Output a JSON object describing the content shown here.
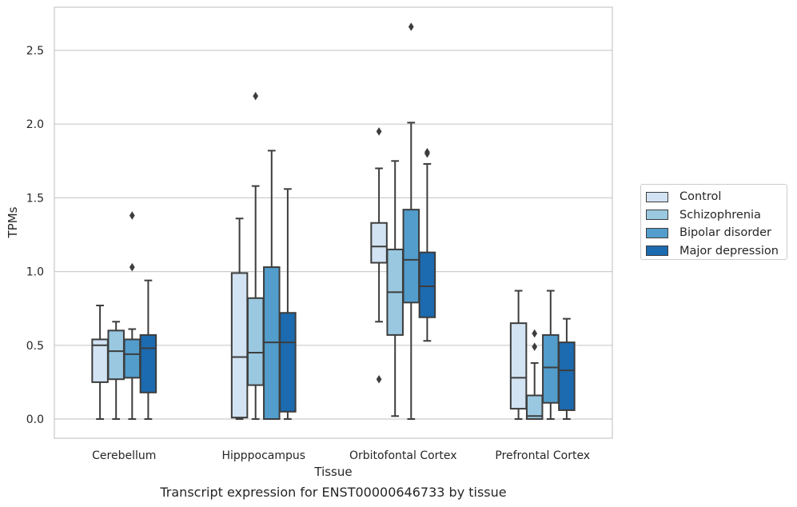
{
  "caption": "Transcript expression for ENST00000646733 by tissue",
  "chart_data": {
    "type": "box",
    "xlabel": "Tissue",
    "ylabel": "TPMs",
    "ylim": [
      -0.13,
      2.8
    ],
    "yticks": [
      "0.0",
      "0.5",
      "1.0",
      "1.5",
      "2.0",
      "2.5"
    ],
    "grid": "horizontal",
    "legend_placement": "outside-right",
    "categories": [
      "Cerebellum",
      "Hipppocampus",
      "Orbitofontal Cortex",
      "Prefrontal Cortex"
    ],
    "series": [
      {
        "name": "Control",
        "color": "#d2e3f3",
        "boxes": [
          {
            "whislo": 0.0,
            "q1": 0.25,
            "med": 0.5,
            "q3": 0.54,
            "whishi": 0.77,
            "fliers": []
          },
          {
            "whislo": 0.0,
            "q1": 0.01,
            "med": 0.42,
            "q3": 0.99,
            "whishi": 1.36,
            "fliers": []
          },
          {
            "whislo": 0.66,
            "q1": 1.06,
            "med": 1.17,
            "q3": 1.33,
            "whishi": 1.7,
            "fliers": [
              0.27,
              1.95
            ]
          },
          {
            "whislo": 0.0,
            "q1": 0.07,
            "med": 0.28,
            "q3": 0.65,
            "whishi": 0.87,
            "fliers": []
          }
        ]
      },
      {
        "name": "Schizophrenia",
        "color": "#9ac8e0",
        "boxes": [
          {
            "whislo": 0.0,
            "q1": 0.27,
            "med": 0.46,
            "q3": 0.6,
            "whishi": 0.66,
            "fliers": []
          },
          {
            "whislo": 0.0,
            "q1": 0.23,
            "med": 0.45,
            "q3": 0.82,
            "whishi": 1.58,
            "fliers": [
              2.19
            ]
          },
          {
            "whislo": 0.02,
            "q1": 0.57,
            "med": 0.86,
            "q3": 1.15,
            "whishi": 1.75,
            "fliers": []
          },
          {
            "whislo": 0.0,
            "q1": 0.0,
            "med": 0.02,
            "q3": 0.16,
            "whishi": 0.38,
            "fliers": [
              0.49,
              0.58
            ]
          }
        ]
      },
      {
        "name": "Bipolar disorder",
        "color": "#529dcc",
        "boxes": [
          {
            "whislo": 0.0,
            "q1": 0.28,
            "med": 0.44,
            "q3": 0.54,
            "whishi": 0.61,
            "fliers": [
              1.03,
              1.38
            ]
          },
          {
            "whislo": 0.0,
            "q1": 0.0,
            "med": 0.52,
            "q3": 1.03,
            "whishi": 1.82,
            "fliers": []
          },
          {
            "whislo": 0.0,
            "q1": 0.79,
            "med": 1.08,
            "q3": 1.42,
            "whishi": 2.01,
            "fliers": [
              2.66
            ]
          },
          {
            "whislo": 0.0,
            "q1": 0.11,
            "med": 0.35,
            "q3": 0.57,
            "whishi": 0.87,
            "fliers": []
          }
        ]
      },
      {
        "name": "Major depression",
        "color": "#1c6aaf",
        "boxes": [
          {
            "whislo": 0.0,
            "q1": 0.18,
            "med": 0.48,
            "q3": 0.57,
            "whishi": 0.94,
            "fliers": []
          },
          {
            "whislo": 0.0,
            "q1": 0.05,
            "med": 0.52,
            "q3": 0.72,
            "whishi": 1.56,
            "fliers": []
          },
          {
            "whislo": 0.53,
            "q1": 0.69,
            "med": 0.9,
            "q3": 1.13,
            "whishi": 1.73,
            "fliers": [
              1.8,
              1.81
            ]
          },
          {
            "whislo": 0.0,
            "q1": 0.06,
            "med": 0.33,
            "q3": 0.52,
            "whishi": 0.68,
            "fliers": []
          }
        ]
      }
    ]
  }
}
